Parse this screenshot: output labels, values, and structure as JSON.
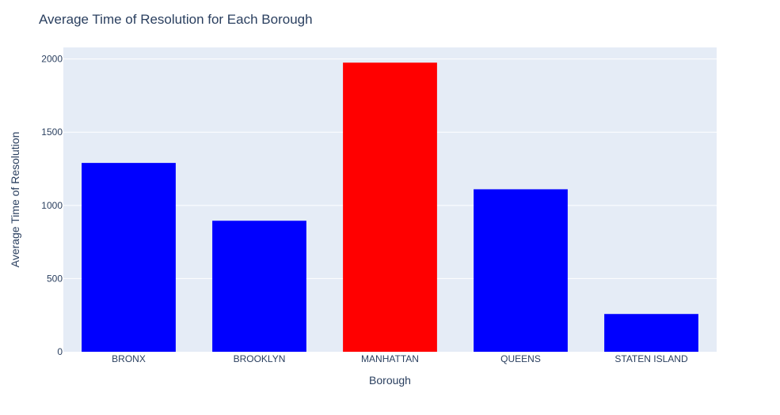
{
  "chart_data": {
    "type": "bar",
    "title": "Average Time of Resolution for Each Borough",
    "xlabel": "Borough",
    "ylabel": "Average Time of Resolution",
    "categories": [
      "BRONX",
      "BROOKLYN",
      "MANHATTAN",
      "QUEENS",
      "STATEN ISLAND"
    ],
    "values": [
      1290,
      895,
      1975,
      1110,
      258
    ],
    "bar_colors": [
      "#0000ff",
      "#0000ff",
      "#ff0000",
      "#0000ff",
      "#0000ff"
    ],
    "ylim": [
      0,
      2079
    ],
    "yticks": [
      0,
      500,
      1000,
      1500,
      2000
    ],
    "ytick_labels": [
      "0",
      "500",
      "1000",
      "1500",
      "2000"
    ],
    "grid": true,
    "plot_background": "#e5ecf6",
    "text_color": "#2a3f5f"
  }
}
